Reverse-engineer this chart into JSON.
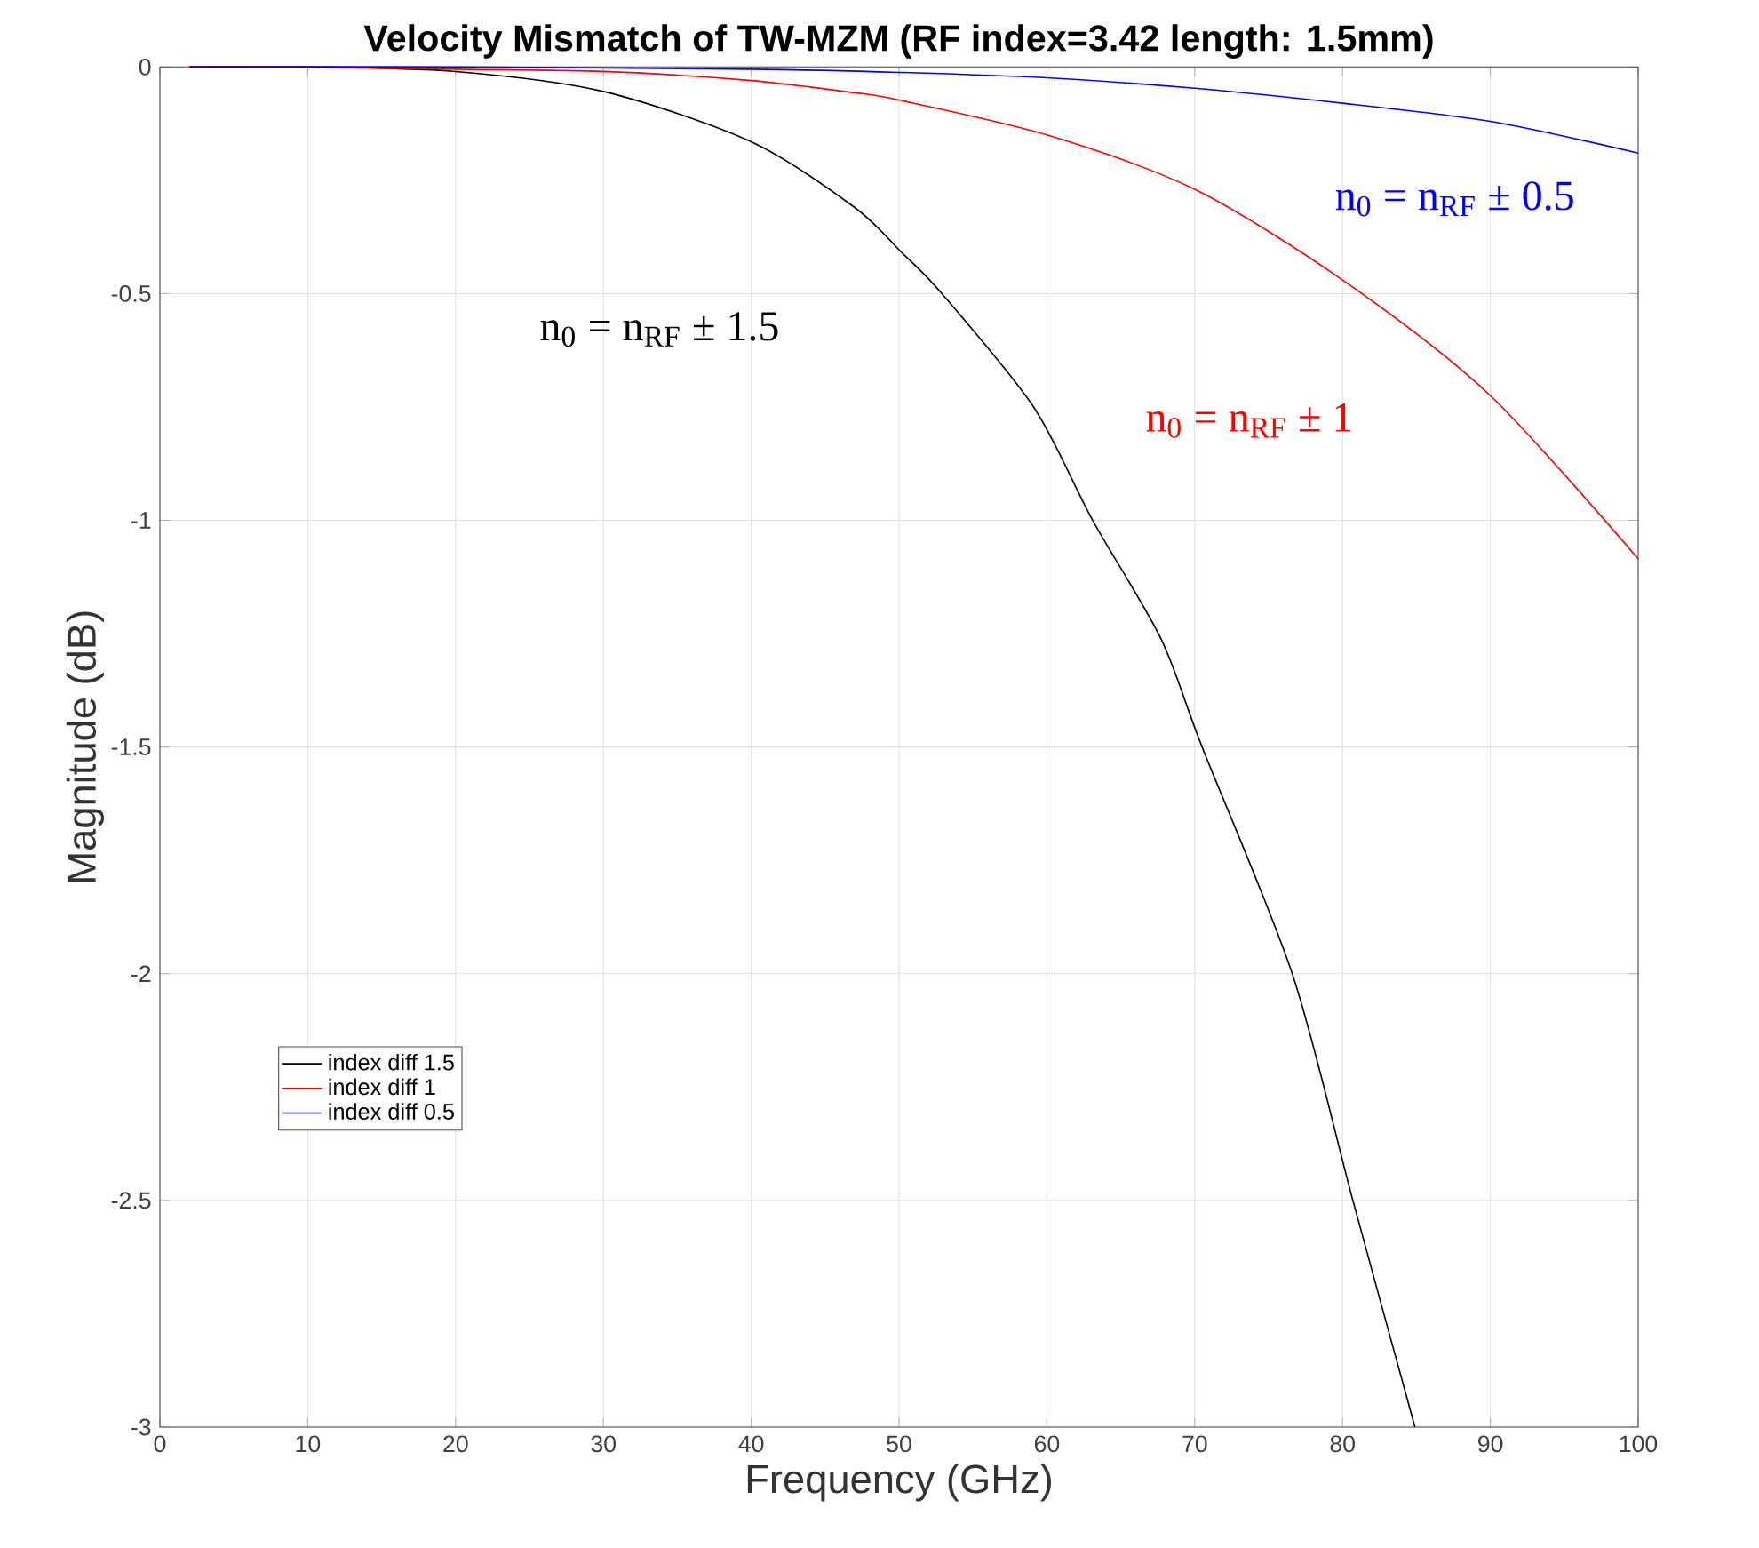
{
  "chart_data": {
    "type": "line",
    "title": "Velocity Mismatch of TW-MZM (RF index=3.42 length: 1.5mm)",
    "xlabel": "Frequency (GHz)",
    "ylabel": "Magnitude (dB)",
    "x": [
      2,
      10,
      20,
      30,
      40,
      47,
      50.2,
      52.9,
      59.1,
      63.1,
      67.7,
      70.5,
      76.6,
      80.7,
      84.9
    ],
    "series": [
      {
        "name": "index diff 1.5",
        "color": "#000000",
        "values": [
          0,
          0,
          -0.01,
          -0.054,
          -0.165,
          -0.31,
          -0.41,
          -0.5,
          -0.75,
          -1,
          -1.26,
          -1.5,
          -2,
          -2.5,
          -3
        ]
      },
      {
        "name": "index diff 1",
        "color": "#ff0000",
        "x": [
          2,
          10,
          20,
          30,
          40,
          47,
          50,
          60,
          70,
          80,
          90,
          100
        ],
        "values": [
          0,
          0,
          -0.005,
          -0.01,
          -0.03,
          -0.057,
          -0.073,
          -0.15,
          -0.27,
          -0.47,
          -0.725,
          -1.085
        ]
      },
      {
        "name": "index diff 0.5",
        "color": "#0000ff",
        "x": [
          2,
          20,
          40,
          50,
          60,
          70,
          80,
          90,
          100
        ],
        "values": [
          0,
          0,
          -0.005,
          -0.012,
          -0.024,
          -0.047,
          -0.08,
          -0.12,
          -0.19
        ]
      }
    ],
    "xlim": [
      0,
      100
    ],
    "ylim": [
      -3,
      0
    ],
    "xticks": [
      0,
      10,
      20,
      30,
      40,
      50,
      60,
      70,
      80,
      90,
      100
    ],
    "yticks": [
      0,
      {
        "value": -0.5,
        "label": "-0.5"
      },
      {
        "value": -1,
        "label": "-1"
      },
      {
        "value": -1.5,
        "label": "-1.5"
      },
      {
        "value": -2,
        "label": "-2"
      },
      {
        "value": -2.5,
        "label": "-2.5"
      },
      {
        "value": -3,
        "label": "-3"
      }
    ],
    "grid": true,
    "legend": "bottom left",
    "marker": "none",
    "line_style": "solid",
    "annotations": [
      "n$_{0}$ = n$_{RF}$ ± 1.5",
      "n$_{0}$ = n$_{RF}$ ± 1",
      "n$_{0}$ = n$_{RF}$ ± 0.5"
    ]
  }
}
